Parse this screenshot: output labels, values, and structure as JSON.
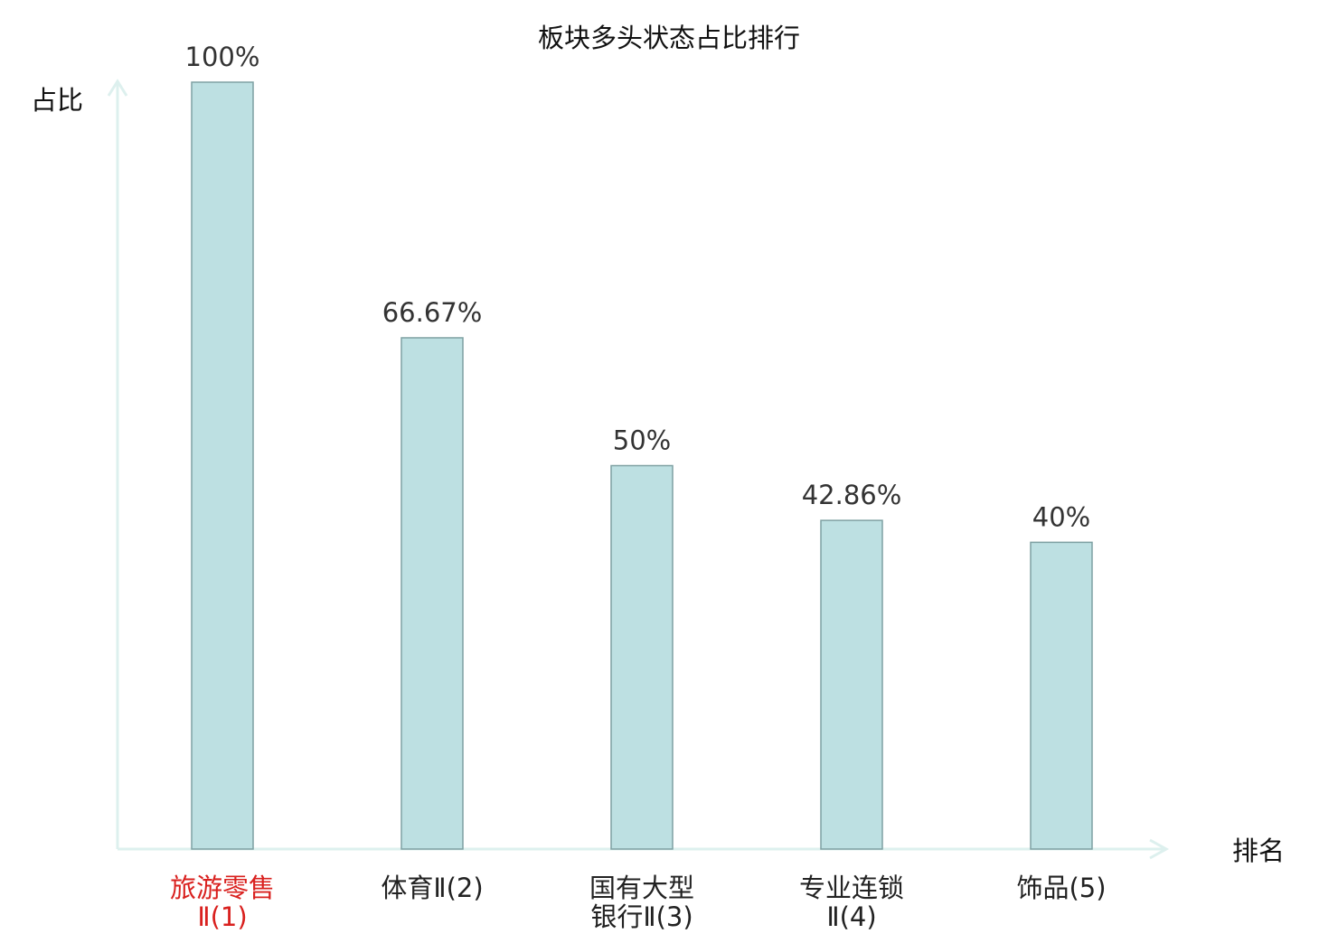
{
  "chart_data": {
    "type": "bar",
    "title": "板块多头状态占比排行",
    "ylabel": "占比",
    "xlabel": "排名",
    "ylim": [
      0,
      100
    ],
    "categories": [
      {
        "lines": [
          "旅游零售",
          "Ⅱ(1)"
        ],
        "highlight": true
      },
      {
        "lines": [
          "体育Ⅱ(2)"
        ],
        "highlight": false
      },
      {
        "lines": [
          "国有大型",
          "银行Ⅱ(3)"
        ],
        "highlight": false
      },
      {
        "lines": [
          "专业连锁",
          "Ⅱ(4)"
        ],
        "highlight": false
      },
      {
        "lines": [
          "饰品(5)"
        ],
        "highlight": false
      }
    ],
    "values": [
      100,
      66.67,
      50,
      42.86,
      40
    ],
    "value_labels": [
      "100%",
      "66.67%",
      "50%",
      "42.86%",
      "40%"
    ],
    "grid": false,
    "legend": "none"
  },
  "colors": {
    "bar_fill": "#bde0e2",
    "bar_stroke": "#7fa1a3",
    "axis": "#ddf0ee",
    "text": "#222222",
    "value_text": "#333333",
    "highlight_text": "#d9201e"
  }
}
